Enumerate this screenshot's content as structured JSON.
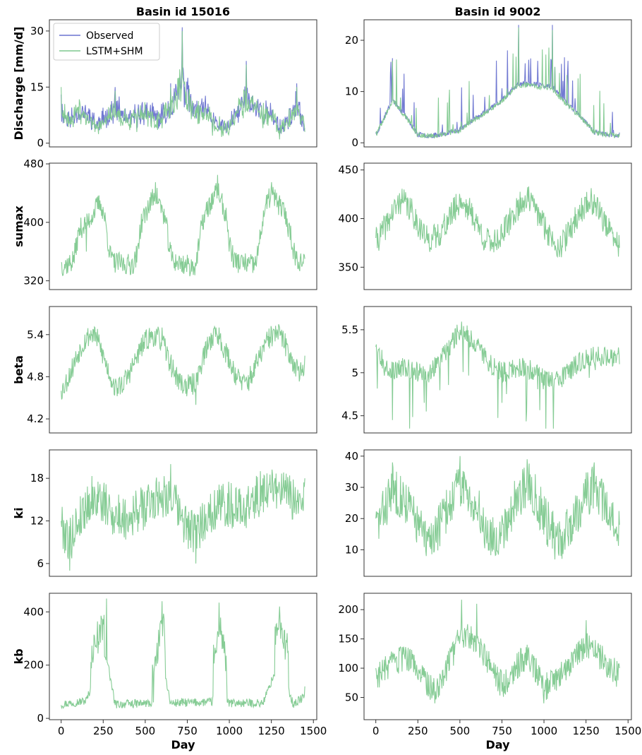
{
  "colors": {
    "observed": "#6a73d0",
    "lstm_shm": "#7fc98f"
  },
  "chart_data": [
    {
      "id": "discharge-15016",
      "type": "line",
      "row": 0,
      "col": 0,
      "title": "Basin id 15016",
      "ylabel": "Discharge [mm/d]",
      "xlabel": "",
      "xlim": [
        -70,
        1520
      ],
      "ylim": [
        -1,
        33
      ],
      "yticks": [
        0,
        15,
        30
      ],
      "xticks": [],
      "legend": {
        "placement": "top-left",
        "entries": [
          "Observed",
          "LSTM+SHM"
        ]
      },
      "synth": {
        "base": 4.5,
        "amp": 6.5,
        "noise": 1.6,
        "spikes": 0.7,
        "min": 0.5,
        "max": 31.5,
        "seed": 11,
        "season": "wet",
        "skew": true
      },
      "series": [
        {
          "name": "Observed",
          "color": "observed",
          "points": [
            [
              0,
              13
            ],
            [
              60,
              6
            ],
            [
              200,
              4
            ],
            [
              320,
              15
            ],
            [
              450,
              4
            ],
            [
              560,
              6
            ],
            [
              650,
              16
            ],
            [
              720,
              31
            ],
            [
              800,
              8
            ],
            [
              900,
              3
            ],
            [
              1000,
              4
            ],
            [
              1100,
              22
            ],
            [
              1200,
              5
            ],
            [
              1300,
              2
            ],
            [
              1400,
              16
            ],
            [
              1450,
              4
            ]
          ]
        },
        {
          "name": "LSTM+SHM",
          "color": "lstm_shm",
          "points": [
            [
              0,
              15
            ],
            [
              60,
              5
            ],
            [
              200,
              3
            ],
            [
              320,
              14
            ],
            [
              450,
              3
            ],
            [
              560,
              5
            ],
            [
              650,
              15
            ],
            [
              720,
              30
            ],
            [
              800,
              7
            ],
            [
              900,
              2
            ],
            [
              1000,
              3
            ],
            [
              1100,
              21
            ],
            [
              1200,
              4
            ],
            [
              1300,
              1
            ],
            [
              1400,
              15
            ],
            [
              1450,
              3
            ]
          ]
        }
      ]
    },
    {
      "id": "discharge-9002",
      "type": "line",
      "row": 0,
      "col": 1,
      "title": "Basin id 9002",
      "ylabel": "",
      "xlabel": "",
      "xlim": [
        -70,
        1520
      ],
      "ylim": [
        -0.8,
        24
      ],
      "yticks": [
        0,
        10,
        20
      ],
      "xticks": [],
      "synth": {
        "base": 1.6,
        "amp": 0.6,
        "noise": 0.5,
        "spikes": 0.9,
        "min": 0.3,
        "max": 23,
        "seed": 23,
        "spiky": true
      },
      "series": [
        {
          "name": "Observed",
          "color": "observed",
          "points": [
            [
              0,
              2
            ],
            [
              100,
              16.5
            ],
            [
              250,
              1.5
            ],
            [
              500,
              3
            ],
            [
              850,
              23
            ],
            [
              1050,
              23
            ],
            [
              1300,
              2
            ],
            [
              1450,
              2
            ]
          ]
        },
        {
          "name": "LSTM+SHM",
          "color": "lstm_shm",
          "points": [
            [
              0,
              2
            ],
            [
              100,
              16
            ],
            [
              250,
              1.4
            ],
            [
              500,
              2.8
            ],
            [
              850,
              22.5
            ],
            [
              1050,
              22
            ],
            [
              1300,
              1.8
            ],
            [
              1450,
              1.8
            ]
          ]
        }
      ]
    },
    {
      "id": "sumax-15016",
      "type": "line",
      "row": 1,
      "col": 0,
      "title": "",
      "ylabel": "sumax",
      "xlabel": "",
      "xlim": [
        -70,
        1520
      ],
      "ylim": [
        308,
        481
      ],
      "yticks": [
        320,
        400,
        480
      ],
      "xticks": [],
      "synth": {
        "base": 382,
        "amp": 45,
        "noise": 15,
        "min": 312,
        "max": 475,
        "seed": 37,
        "season": "square"
      },
      "series": [
        {
          "name": "LSTM+SHM",
          "color": "lstm_shm",
          "points": [
            [
              0,
              345
            ],
            [
              150,
              360
            ],
            [
              230,
              430
            ],
            [
              300,
              355
            ],
            [
              450,
              345
            ],
            [
              560,
              455
            ],
            [
              640,
              360
            ],
            [
              800,
              340
            ],
            [
              930,
              465
            ],
            [
              1000,
              360
            ],
            [
              1150,
              345
            ],
            [
              1250,
              455
            ],
            [
              1350,
              380
            ],
            [
              1450,
              350
            ]
          ]
        }
      ]
    },
    {
      "id": "sumax-9002",
      "type": "line",
      "row": 1,
      "col": 1,
      "title": "",
      "ylabel": "",
      "xlabel": "",
      "xlim": [
        -70,
        1520
      ],
      "ylim": [
        327,
        457
      ],
      "yticks": [
        350,
        400,
        450
      ],
      "xticks": [],
      "synth": {
        "base": 395,
        "amp": 22,
        "noise": 14,
        "min": 330,
        "max": 452,
        "seed": 41,
        "season": "sine"
      },
      "series": [
        {
          "name": "LSTM+SHM",
          "color": "lstm_shm",
          "points": [
            [
              0,
              380
            ],
            [
              150,
              420
            ],
            [
              300,
              380
            ],
            [
              500,
              420
            ],
            [
              650,
              370
            ],
            [
              900,
              425
            ],
            [
              1100,
              370
            ],
            [
              1300,
              425
            ],
            [
              1450,
              370
            ]
          ]
        }
      ]
    },
    {
      "id": "beta-15016",
      "type": "line",
      "row": 2,
      "col": 0,
      "title": "",
      "ylabel": "beta",
      "xlabel": "",
      "xlim": [
        -70,
        1520
      ],
      "ylim": [
        4.0,
        5.8
      ],
      "yticks": [
        4.2,
        4.8,
        5.4
      ],
      "xticks": [],
      "synth": {
        "base": 5.0,
        "amp": 0.42,
        "noise": 0.16,
        "min": 4.1,
        "max": 5.65,
        "seed": 53,
        "season": "sine"
      },
      "series": [
        {
          "name": "LSTM+SHM",
          "color": "lstm_shm",
          "points": [
            [
              0,
              4.6
            ],
            [
              200,
              5.5
            ],
            [
              320,
              4.7
            ],
            [
              600,
              5.5
            ],
            [
              800,
              4.4
            ],
            [
              920,
              5.5
            ],
            [
              1100,
              4.8
            ],
            [
              1300,
              5.5
            ],
            [
              1450,
              5.1
            ]
          ]
        }
      ]
    },
    {
      "id": "beta-9002",
      "type": "line",
      "row": 2,
      "col": 1,
      "title": "",
      "ylabel": "",
      "xlabel": "",
      "xlim": [
        -70,
        1520
      ],
      "ylim": [
        4.3,
        5.77
      ],
      "yticks": [
        4.5,
        5.0,
        5.5
      ],
      "xticks": [],
      "synth": {
        "base": 5.4,
        "amp": 0.12,
        "noise": 0.12,
        "dips": 0.8,
        "min": 4.35,
        "max": 5.72,
        "seed": 67,
        "season": "sine"
      },
      "series": [
        {
          "name": "LSTM+SHM",
          "color": "lstm_shm",
          "points": [
            [
              0,
              5.3
            ],
            [
              100,
              4.45
            ],
            [
              300,
              4.55
            ],
            [
              500,
              5.5
            ],
            [
              750,
              4.65
            ],
            [
              1010,
              4.35
            ],
            [
              1450,
              5.1
            ]
          ]
        }
      ]
    },
    {
      "id": "ki-15016",
      "type": "line",
      "row": 3,
      "col": 0,
      "title": "",
      "ylabel": "ki",
      "xlabel": "",
      "xlim": [
        -70,
        1520
      ],
      "ylim": [
        4.2,
        22
      ],
      "yticks": [
        6,
        12,
        18
      ],
      "xticks": [],
      "synth": {
        "base": 13.5,
        "amp": 2.2,
        "noise": 3.2,
        "min": 4.8,
        "max": 20.5,
        "seed": 79,
        "season": "sine"
      },
      "series": [
        {
          "name": "LSTM+SHM",
          "color": "lstm_shm",
          "points": [
            [
              0,
              12
            ],
            [
              50,
              5
            ],
            [
              200,
              16
            ],
            [
              500,
              12
            ],
            [
              650,
              20
            ],
            [
              800,
              6
            ],
            [
              1000,
              16
            ],
            [
              1200,
              18
            ],
            [
              1450,
              18
            ]
          ]
        }
      ]
    },
    {
      "id": "ki-9002",
      "type": "line",
      "row": 3,
      "col": 1,
      "title": "",
      "ylabel": "",
      "xlabel": "",
      "xlim": [
        -70,
        1520
      ],
      "ylim": [
        1.5,
        42
      ],
      "yticks": [
        10,
        20,
        30,
        40
      ],
      "xticks": [],
      "synth": {
        "base": 20,
        "amp": 5,
        "noise": 7.5,
        "min": 2.5,
        "max": 40.5,
        "seed": 83,
        "season": "sine"
      },
      "series": [
        {
          "name": "LSTM+SHM",
          "color": "lstm_shm",
          "points": [
            [
              0,
              20
            ],
            [
              100,
              38
            ],
            [
              300,
              8
            ],
            [
              500,
              40
            ],
            [
              700,
              10
            ],
            [
              900,
              39
            ],
            [
              1100,
              8
            ],
            [
              1300,
              38
            ],
            [
              1450,
              18
            ]
          ]
        }
      ]
    },
    {
      "id": "kb-15016",
      "type": "line",
      "row": 4,
      "col": 0,
      "title": "",
      "ylabel": "kb",
      "xlabel": "Day",
      "xlim": [
        -70,
        1520
      ],
      "ylim": [
        -5,
        470
      ],
      "yticks": [
        0,
        200,
        400
      ],
      "xticks": [
        0,
        250,
        500,
        750,
        1000,
        1250,
        1500
      ],
      "synth": {
        "base": 55,
        "amp": 0,
        "noise": 16,
        "min": 18,
        "max": 450,
        "seed": 97,
        "season": "pulse"
      },
      "series": [
        {
          "name": "LSTM+SHM",
          "color": "lstm_shm",
          "points": [
            [
              0,
              50
            ],
            [
              150,
              80
            ],
            [
              200,
              280
            ],
            [
              270,
              450
            ],
            [
              320,
              50
            ],
            [
              550,
              60
            ],
            [
              600,
              440
            ],
            [
              650,
              60
            ],
            [
              900,
              70
            ],
            [
              940,
              435
            ],
            [
              990,
              60
            ],
            [
              1200,
              60
            ],
            [
              1300,
              420
            ],
            [
              1380,
              50
            ],
            [
              1450,
              120
            ]
          ]
        }
      ]
    },
    {
      "id": "kb-9002",
      "type": "line",
      "row": 4,
      "col": 1,
      "title": "",
      "ylabel": "",
      "xlabel": "Day",
      "xlim": [
        -70,
        1520
      ],
      "ylim": [
        12,
        228
      ],
      "yticks": [
        50,
        100,
        150,
        200
      ],
      "xticks": [
        0,
        250,
        500,
        750,
        1000,
        1250,
        1500
      ],
      "synth": {
        "base": 92,
        "amp": 14,
        "noise": 24,
        "min": 22,
        "max": 217,
        "seed": 103,
        "season": "sine"
      },
      "series": [
        {
          "name": "LSTM+SHM",
          "color": "lstm_shm",
          "points": [
            [
              0,
              100
            ],
            [
              200,
              130
            ],
            [
              350,
              40
            ],
            [
              510,
              217
            ],
            [
              600,
              210
            ],
            [
              750,
              60
            ],
            [
              900,
              140
            ],
            [
              1000,
              40
            ],
            [
              1250,
              182
            ],
            [
              1450,
              100
            ]
          ]
        }
      ]
    }
  ]
}
